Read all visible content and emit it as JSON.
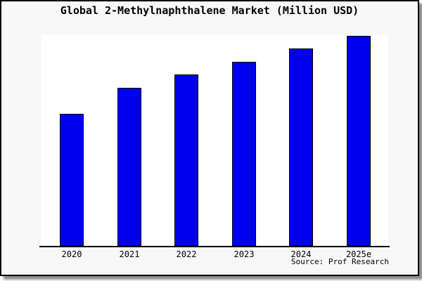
{
  "title": "Global 2-Methylnaphthalene Market (Million USD)",
  "source_note": "Source: Prof Research",
  "colors": {
    "bar_fill": "#0000ee",
    "bar_border": "#000000",
    "figure_bg": "#f8f8f8",
    "plot_bg": "#ffffff",
    "axis_color": "#000000",
    "frame_border": "#000000"
  },
  "chart_data": {
    "type": "bar",
    "title": "Global 2-Methylnaphthalene Market (Million USD)",
    "categories": [
      "2020",
      "2021",
      "2022",
      "2023",
      "2024",
      "2025e"
    ],
    "values": [
      62.9,
      75.3,
      81.6,
      87.6,
      94.0,
      100.0
    ],
    "value_basis": "relative bar heights (no y-axis scale shown); normalized so 2025e = 100",
    "xlabel": "",
    "ylabel": "",
    "ylim": [
      0,
      100
    ],
    "y_axis_shown": false,
    "gridlines": false,
    "legend_shown": false,
    "bar_count": 6,
    "source_note": "Source: Prof Research"
  }
}
